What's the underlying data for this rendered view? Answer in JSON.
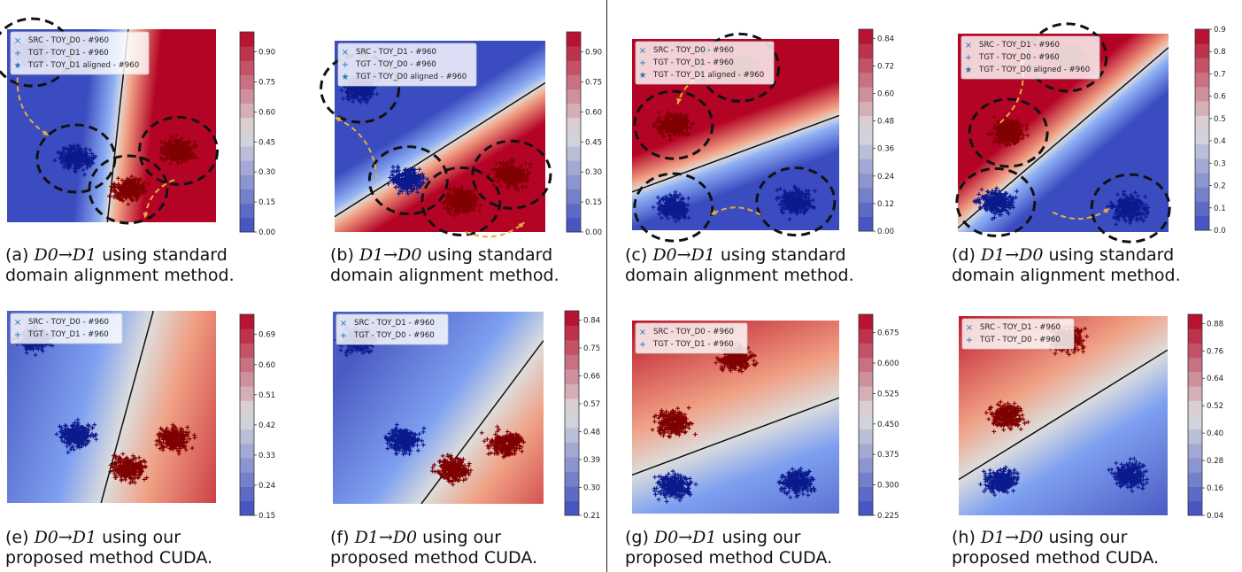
{
  "panel_caption_parts": {
    "standard_suffix_1": "using standard",
    "standard_suffix_2": "domain alignment method.",
    "ours_suffix_1": "using our",
    "ours_suffix_2": "proposed method CUDA.",
    "arrow": "→"
  },
  "colors": {
    "low": "#3b4cc0",
    "mid": "#dddddd",
    "high": "#b40426",
    "src_blue": "#1f77b4",
    "tgt_blue": "#0b1a8c",
    "tgt_red": "#7f0000",
    "arrow": "#e2ad3a"
  },
  "chart_data": [
    {
      "id": "a",
      "type": "scatter",
      "caption_label": "(a)",
      "direction": [
        "D0",
        "D1"
      ],
      "method": "standard",
      "legend": [
        "SRC - TOY_D0 - #960",
        "TGT - TOY_D1 - #960",
        "TGT - TOY_D1 aligned - #960"
      ],
      "colorbar_ticks": [
        "0.00",
        "0.15",
        "0.30",
        "0.45",
        "0.60",
        "0.75",
        "0.90"
      ],
      "colorbar_range": [
        0.0,
        1.0
      ],
      "decision_boundary": [
        [
          0.48,
          0.0
        ],
        [
          0.58,
          1.0
        ]
      ],
      "clusters": [
        {
          "x": 0.12,
          "y": 0.88,
          "color": "blue",
          "circled": true
        },
        {
          "x": 0.33,
          "y": 0.33,
          "color": "blue",
          "circled": true
        },
        {
          "x": 0.58,
          "y": 0.17,
          "color": "red",
          "circled": true
        },
        {
          "x": 0.82,
          "y": 0.37,
          "color": "red",
          "circled": true
        }
      ],
      "arrows": [
        [
          0.05,
          0.75,
          0.2,
          0.45
        ],
        [
          0.8,
          0.22,
          0.66,
          0.02
        ]
      ]
    },
    {
      "id": "b",
      "type": "scatter",
      "caption_label": "(b)",
      "direction": [
        "D1",
        "D0"
      ],
      "method": "standard",
      "legend": [
        "SRC - TOY_D1 - #960",
        "TGT - TOY_D0 - #960",
        "TGT - TOY_D0 aligned - #960"
      ],
      "colorbar_ticks": [
        "0.00",
        "0.15",
        "0.30",
        "0.45",
        "0.60",
        "0.75",
        "0.90"
      ],
      "colorbar_range": [
        0.0,
        1.0
      ],
      "decision_boundary": [
        [
          0.0,
          0.08
        ],
        [
          1.0,
          0.78
        ]
      ],
      "clusters": [
        {
          "x": 0.12,
          "y": 0.75,
          "color": "blue",
          "circled": true
        },
        {
          "x": 0.35,
          "y": 0.27,
          "color": "blue",
          "circled": true
        },
        {
          "x": 0.6,
          "y": 0.16,
          "color": "red",
          "circled": true
        },
        {
          "x": 0.84,
          "y": 0.3,
          "color": "red",
          "circled": true
        }
      ],
      "arrows": [
        [
          0.2,
          0.28,
          0.0,
          0.6
        ],
        [
          0.62,
          0.0,
          0.9,
          0.05
        ]
      ]
    },
    {
      "id": "c",
      "type": "scatter",
      "caption_label": "(c)",
      "direction": [
        "D0",
        "D1"
      ],
      "method": "standard",
      "legend": [
        "SRC - TOY_D0 - #960",
        "TGT - TOY_D1 - #960",
        "TGT - TOY_D1 aligned - #960"
      ],
      "colorbar_ticks": [
        "0.00",
        "0.12",
        "0.24",
        "0.36",
        "0.48",
        "0.60",
        "0.72",
        "0.84"
      ],
      "colorbar_range": [
        0.0,
        0.88
      ],
      "decision_boundary": [
        [
          0.0,
          0.2
        ],
        [
          1.0,
          0.6
        ]
      ],
      "clusters": [
        {
          "x": 0.2,
          "y": 0.55,
          "color": "red",
          "circled": true
        },
        {
          "x": 0.52,
          "y": 0.85,
          "color": "red",
          "circled": true
        },
        {
          "x": 0.2,
          "y": 0.12,
          "color": "blue",
          "circled": true
        },
        {
          "x": 0.79,
          "y": 0.15,
          "color": "blue",
          "circled": true
        }
      ],
      "arrows": [
        [
          0.38,
          0.82,
          0.22,
          0.66
        ],
        [
          0.62,
          0.08,
          0.38,
          0.08
        ]
      ]
    },
    {
      "id": "d",
      "type": "scatter",
      "caption_label": "(d)",
      "direction": [
        "D1",
        "D0"
      ],
      "method": "standard",
      "legend": [
        "SRC - TOY_D1 - #960",
        "TGT - TOY_D0 - #960",
        "TGT - TOY_D0 aligned - #960"
      ],
      "colorbar_ticks": [
        "0.0",
        "0.1",
        "0.2",
        "0.3",
        "0.4",
        "0.5",
        "0.6",
        "0.7",
        "0.8",
        "0.9"
      ],
      "colorbar_range": [
        0.0,
        0.9
      ],
      "decision_boundary": [
        [
          0.0,
          0.02
        ],
        [
          1.0,
          0.93
        ]
      ],
      "clusters": [
        {
          "x": 0.24,
          "y": 0.5,
          "color": "red",
          "circled": true
        },
        {
          "x": 0.52,
          "y": 0.88,
          "color": "red",
          "circled": true
        },
        {
          "x": 0.18,
          "y": 0.15,
          "color": "blue",
          "circled": true
        },
        {
          "x": 0.82,
          "y": 0.12,
          "color": "blue",
          "circled": true
        }
      ],
      "arrows": [
        [
          0.2,
          0.55,
          0.3,
          0.88
        ],
        [
          0.45,
          0.1,
          0.72,
          0.12
        ]
      ]
    },
    {
      "id": "e",
      "type": "scatter",
      "caption_label": "(e)",
      "direction": [
        "D0",
        "D1"
      ],
      "method": "ours",
      "legend": [
        "SRC - TOY_D0 - #960",
        "TGT - TOY_D1 - #960"
      ],
      "colorbar_ticks": [
        "0.15",
        "0.24",
        "0.33",
        "0.42",
        "0.51",
        "0.60",
        "0.69"
      ],
      "colorbar_range": [
        0.15,
        0.75
      ],
      "decision_boundary": [
        [
          0.45,
          0.0
        ],
        [
          0.7,
          1.0
        ]
      ],
      "clusters": [
        {
          "x": 0.13,
          "y": 0.85,
          "color": "blue",
          "circled": false
        },
        {
          "x": 0.33,
          "y": 0.35,
          "color": "blue",
          "circled": false
        },
        {
          "x": 0.58,
          "y": 0.18,
          "color": "red",
          "circled": false
        },
        {
          "x": 0.8,
          "y": 0.33,
          "color": "red",
          "circled": false
        }
      ],
      "arrows": []
    },
    {
      "id": "f",
      "type": "scatter",
      "caption_label": "(f)",
      "direction": [
        "D1",
        "D0"
      ],
      "method": "ours",
      "legend": [
        "SRC - TOY_D1 - #960",
        "TGT - TOY_D0 - #960"
      ],
      "colorbar_ticks": [
        "0.21",
        "0.30",
        "0.39",
        "0.48",
        "0.57",
        "0.66",
        "0.75",
        "0.84"
      ],
      "colorbar_range": [
        0.21,
        0.87
      ],
      "decision_boundary": [
        [
          0.42,
          0.0
        ],
        [
          1.0,
          0.85
        ]
      ],
      "clusters": [
        {
          "x": 0.12,
          "y": 0.85,
          "color": "blue",
          "circled": false
        },
        {
          "x": 0.33,
          "y": 0.33,
          "color": "blue",
          "circled": false
        },
        {
          "x": 0.57,
          "y": 0.18,
          "color": "red",
          "circled": false
        },
        {
          "x": 0.82,
          "y": 0.31,
          "color": "red",
          "circled": false
        }
      ],
      "arrows": []
    },
    {
      "id": "g",
      "type": "scatter",
      "caption_label": "(g)",
      "direction": [
        "D0",
        "D1"
      ],
      "method": "ours",
      "legend": [
        "SRC - TOY_D0 - #960",
        "TGT - TOY_D1 - #960"
      ],
      "colorbar_ticks": [
        "0.225",
        "0.300",
        "0.375",
        "0.450",
        "0.525",
        "0.600",
        "0.675"
      ],
      "colorbar_range": [
        0.225,
        0.72
      ],
      "decision_boundary": [
        [
          0.0,
          0.2
        ],
        [
          1.0,
          0.6
        ]
      ],
      "clusters": [
        {
          "x": 0.2,
          "y": 0.47,
          "color": "red",
          "circled": false
        },
        {
          "x": 0.5,
          "y": 0.8,
          "color": "red",
          "circled": false
        },
        {
          "x": 0.2,
          "y": 0.14,
          "color": "blue",
          "circled": false
        },
        {
          "x": 0.8,
          "y": 0.16,
          "color": "blue",
          "circled": false
        }
      ],
      "arrows": []
    },
    {
      "id": "h",
      "type": "scatter",
      "caption_label": "(h)",
      "direction": [
        "D1",
        "D0"
      ],
      "method": "ours",
      "legend": [
        "SRC - TOY_D1 - #960",
        "TGT - TOY_D0 - #960"
      ],
      "colorbar_ticks": [
        "0.04",
        "0.16",
        "0.28",
        "0.40",
        "0.52",
        "0.64",
        "0.76",
        "0.88"
      ],
      "colorbar_range": [
        0.04,
        0.92
      ],
      "decision_boundary": [
        [
          0.0,
          0.18
        ],
        [
          1.0,
          0.83
        ]
      ],
      "clusters": [
        {
          "x": 0.23,
          "y": 0.5,
          "color": "red",
          "circled": false
        },
        {
          "x": 0.52,
          "y": 0.88,
          "color": "red",
          "circled": false
        },
        {
          "x": 0.2,
          "y": 0.17,
          "color": "blue",
          "circled": false
        },
        {
          "x": 0.82,
          "y": 0.2,
          "color": "blue",
          "circled": false
        }
      ],
      "arrows": []
    }
  ]
}
